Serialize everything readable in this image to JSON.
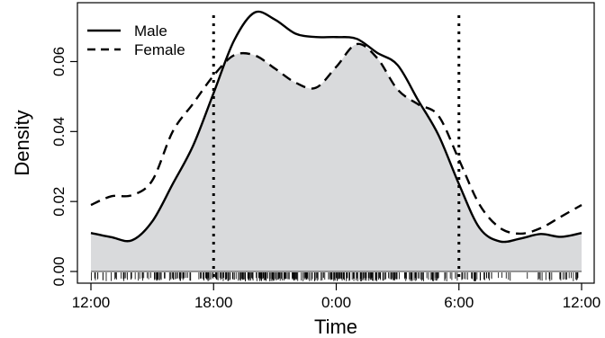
{
  "chart_data": {
    "type": "line",
    "xlabel": "Time",
    "ylabel": "Density",
    "x_ticks": [
      "12:00",
      "18:00",
      "0:00",
      "6:00",
      "12:00"
    ],
    "y_ticks": [
      "0.00",
      "0.02",
      "0.04",
      "0.06"
    ],
    "xlim": [
      0,
      24
    ],
    "ylim": [
      0,
      0.074
    ],
    "x_unit": "hours after 12:00",
    "vertical_reference_lines_x": [
      6,
      18
    ],
    "shaded_overlap": true,
    "rug_plot": true,
    "legend_position": "top-left",
    "series": [
      {
        "name": "Male",
        "line_style": "solid",
        "color": "#000000",
        "x": [
          0,
          1,
          2,
          3,
          4,
          5,
          6,
          7,
          8,
          9,
          10,
          11,
          12,
          13,
          14,
          15,
          16,
          17,
          18,
          19,
          20,
          21,
          22,
          23,
          24
        ],
        "y": [
          0.011,
          0.0098,
          0.0089,
          0.0143,
          0.025,
          0.036,
          0.051,
          0.066,
          0.074,
          0.072,
          0.068,
          0.067,
          0.067,
          0.0665,
          0.0625,
          0.059,
          0.049,
          0.039,
          0.025,
          0.0125,
          0.0086,
          0.0094,
          0.0107,
          0.0099,
          0.011
        ]
      },
      {
        "name": "Female",
        "line_style": "dashed",
        "color": "#000000",
        "x": [
          0,
          1,
          2,
          3,
          4,
          5,
          6,
          7,
          8,
          9,
          10,
          11,
          12,
          13,
          14,
          15,
          16,
          17,
          18,
          19,
          20,
          21,
          22,
          23,
          24
        ],
        "y": [
          0.019,
          0.0215,
          0.0218,
          0.026,
          0.04,
          0.048,
          0.056,
          0.0618,
          0.0618,
          0.058,
          0.054,
          0.0525,
          0.0585,
          0.065,
          0.061,
          0.052,
          0.0478,
          0.0445,
          0.032,
          0.0192,
          0.0125,
          0.0108,
          0.0124,
          0.0157,
          0.019
        ]
      }
    ]
  },
  "colors": {
    "shade": "#d9dadc",
    "rug": "#000000",
    "line": "#000000"
  }
}
